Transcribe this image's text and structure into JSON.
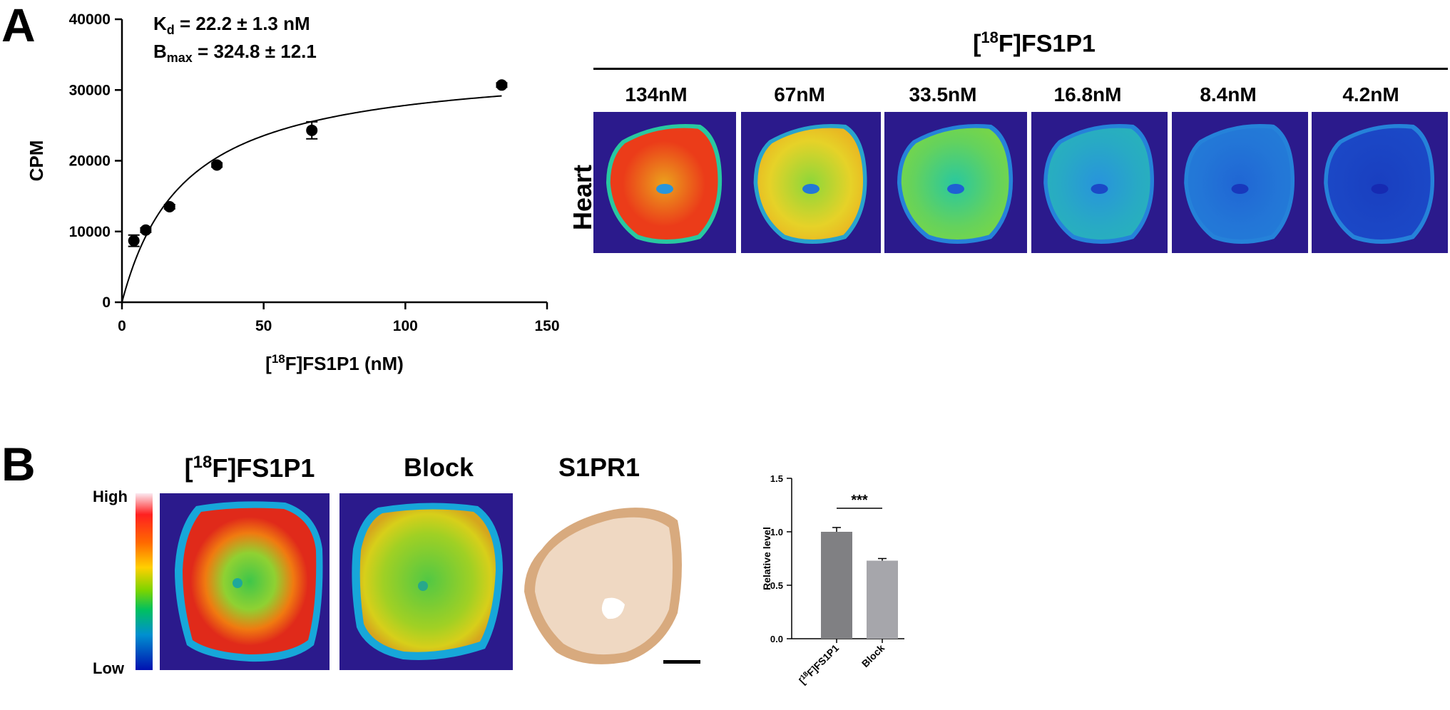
{
  "panelA": {
    "letter": "A",
    "fit_kd": "22.2 ± 1.3 nM",
    "fit_bmax": "324.8 ± 12.1",
    "kd_sym": "K",
    "kd_sub": "d",
    "bmax_sym": "B",
    "bmax_sub": "max",
    "heatmap_title_pre": "[",
    "heatmap_title_sup": "18",
    "heatmap_title_post": "F]FS1P1",
    "row_label": "Heart",
    "concentrations": [
      "134nM",
      "67nM",
      "33.5nM",
      "16.8nM",
      "8.4nM",
      "4.2nM"
    ],
    "tile_levels": [
      1.0,
      0.75,
      0.55,
      0.36,
      0.22,
      0.1
    ]
  },
  "panelB": {
    "letter": "B",
    "col_titles": {
      "fs1p1_pre": "[",
      "fs1p1_sup": "18",
      "fs1p1_post": "F]FS1P1",
      "block": "Block",
      "s1pr1": "S1PR1"
    },
    "colorbar_high": "High",
    "colorbar_low": "Low"
  },
  "chart_data": [
    {
      "type": "scatter",
      "ylabel": "CPM",
      "xlabel": "[18F]FS1P1 (nM)",
      "xlim": [
        0,
        150
      ],
      "ylim": [
        0,
        40000
      ],
      "xticks": [
        0,
        50,
        100,
        150
      ],
      "yticks": [
        0,
        10000,
        20000,
        30000,
        40000
      ],
      "points": [
        {
          "x": 4.2,
          "y": 8700,
          "err": 800
        },
        {
          "x": 8.4,
          "y": 10200,
          "err": 300
        },
        {
          "x": 16.8,
          "y": 13500,
          "err": 300
        },
        {
          "x": 33.5,
          "y": 19400,
          "err": 300
        },
        {
          "x": 67,
          "y": 24300,
          "err": 1200
        },
        {
          "x": 134,
          "y": 30700,
          "err": 300
        }
      ],
      "fit": {
        "model": "one-site specific binding",
        "kd": 22.2,
        "bmax_cpm": 34000
      }
    },
    {
      "type": "bar",
      "ylabel": "Relative level",
      "categories": [
        "[18F]FS1P1",
        "Block"
      ],
      "values": [
        1.0,
        0.73
      ],
      "errors": [
        0.04,
        0.02
      ],
      "ylim": [
        0,
        1.5
      ],
      "yticks": [
        "0.0",
        "0.5",
        "1.0",
        "1.5"
      ],
      "significance": "***",
      "colors": [
        "#808083",
        "#a6a6ab"
      ]
    }
  ]
}
